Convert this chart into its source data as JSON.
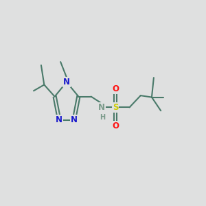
{
  "bg_color": "#dfe0e0",
  "bond_color": "#4a7a6a",
  "bond_width": 1.5,
  "n_color": "#1a1acc",
  "s_color": "#cccc00",
  "o_color": "#ff1010",
  "nh_color": "#7a9a8a",
  "font_size_atom": 8.5,
  "font_size_h": 7.0,
  "figsize": [
    3.0,
    3.0
  ],
  "dpi": 100,
  "xlim": [
    0,
    10
  ],
  "ylim": [
    2,
    8
  ]
}
